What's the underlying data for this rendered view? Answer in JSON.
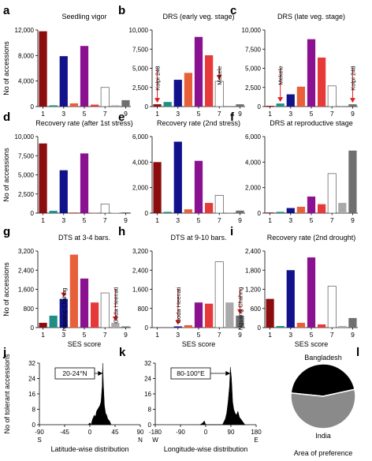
{
  "palette": {
    "1": "#8B0D0D",
    "2": "#1F8F86",
    "3": "#12128C",
    "4": "#E8603A",
    "5": "#8A1291",
    "6": "#E63A3A",
    "7": "#FFFFFF",
    "8": "#A9A9A9",
    "9": "#6F6F6F",
    "arrow": "#E02020",
    "dark": "#000000",
    "pie_grey": "#8A8A8A"
  },
  "shared": {
    "ylabel": "No of accessions",
    "xlabel": "SES score",
    "categories": [
      1,
      2,
      3,
      4,
      5,
      6,
      7,
      8,
      9
    ],
    "tick_labels": [
      "1",
      "3",
      "5",
      "7",
      "9"
    ]
  },
  "chart_data": [
    {
      "type": "bar",
      "panel_letter": "a",
      "title": "Seedling vigor",
      "ylim": [
        0,
        12000
      ],
      "yticks": [
        "0",
        "4,000",
        "8,000",
        "12,000"
      ],
      "values": [
        11800,
        200,
        7900,
        500,
        9500,
        300,
        3000,
        200,
        1000
      ],
      "annotations": []
    },
    {
      "type": "bar",
      "panel_letter": "b",
      "title": "DRS (early veg. stage)",
      "ylim": [
        0,
        10000
      ],
      "yticks": [
        "0",
        "2,500",
        "5,000",
        "7,500",
        "10,000"
      ],
      "values": [
        300,
        600,
        3500,
        4400,
        9100,
        6700,
        3300,
        100,
        300
      ],
      "annotations": [
        {
          "label": "Kolpi 248",
          "category": 1
        },
        {
          "label": "Mekele",
          "category": 7
        }
      ]
    },
    {
      "type": "bar",
      "panel_letter": "c",
      "title": "DRS (late veg. stage)",
      "ylim": [
        0,
        10000
      ],
      "yticks": [
        "0",
        "2,500",
        "5,000",
        "7,500",
        "10,000"
      ],
      "values": [
        100,
        400,
        1600,
        2600,
        8800,
        6400,
        2700,
        100,
        300
      ],
      "annotations": [
        {
          "label": "Mekele",
          "category": 2
        },
        {
          "label": "Kolpi 248",
          "category": 9
        }
      ]
    },
    {
      "type": "bar",
      "panel_letter": "d",
      "title": "Recovery rate (after 1st stress)",
      "ylim": [
        0,
        10000
      ],
      "yticks": [
        "0",
        "2,500",
        "5,000",
        "7,500",
        "10,000"
      ],
      "values": [
        9100,
        300,
        5600,
        100,
        7800,
        50,
        1200,
        50,
        100
      ],
      "annotations": []
    },
    {
      "type": "bar",
      "panel_letter": "e",
      "title": "Recovery rate (2nd stress)",
      "ylim": [
        0,
        6000
      ],
      "yticks": [
        "0",
        "2,000",
        "4,000",
        "6,000"
      ],
      "values": [
        4000,
        100,
        5600,
        300,
        4100,
        800,
        1400,
        50,
        200
      ],
      "annotations": []
    },
    {
      "type": "bar",
      "panel_letter": "f",
      "title": "DRS at reproductive stage",
      "ylim": [
        0,
        6000
      ],
      "yticks": [
        "0",
        "2,000",
        "4,000",
        "6,000"
      ],
      "values": [
        50,
        100,
        400,
        500,
        1300,
        700,
        3100,
        800,
        4900
      ],
      "annotations": []
    },
    {
      "type": "bar",
      "panel_letter": "g",
      "title": "DTS at 3-4 bars.",
      "ylim": [
        0,
        3200
      ],
      "yticks": [
        "0",
        "800",
        "1,600",
        "2,400",
        "3,200"
      ],
      "values": [
        200,
        500,
        1200,
        3050,
        2050,
        1050,
        1450,
        200,
        50
      ],
      "annotations": [
        {
          "label": "Nguang Chahng",
          "category": 3
        },
        {
          "label": "Goda Heenati",
          "category": 8
        }
      ]
    },
    {
      "type": "bar",
      "panel_letter": "h",
      "title": "DTS at 9-10 bars.",
      "ylim": [
        0,
        3200
      ],
      "yticks": [
        "0",
        "800",
        "1,600",
        "2,400",
        "3,200"
      ],
      "values": [
        0,
        0,
        50,
        100,
        1050,
        1000,
        2750,
        1050,
        500
      ],
      "annotations": [
        {
          "label": "Goda Heenati",
          "category": 3
        },
        {
          "label": "Nguang Chahng",
          "category": 9
        }
      ]
    },
    {
      "type": "bar",
      "panel_letter": "i",
      "title": "Recovery rate  (2nd drought)",
      "ylim": [
        0,
        2400
      ],
      "yticks": [
        "0",
        "600",
        "1,200",
        "1,800",
        "2,400"
      ],
      "values": [
        900,
        50,
        1800,
        150,
        2200,
        100,
        1300,
        50,
        300
      ],
      "annotations": []
    },
    {
      "type": "area",
      "panel_letter": "j",
      "xlabel": "Latitude-wise distribution",
      "xlim": [
        -90,
        90
      ],
      "xticks": [
        "-90",
        "-45",
        "0",
        "45",
        "90"
      ],
      "ylim": [
        0,
        32
      ],
      "yticks": [
        "0",
        "8",
        "16",
        "24",
        "32"
      ],
      "end_labels": [
        "S",
        "N"
      ],
      "callout": "20-24°N",
      "x": [
        -3,
        0,
        2,
        5,
        8,
        10,
        12,
        14,
        16,
        18,
        20,
        22,
        23,
        24,
        26,
        28,
        30,
        32,
        35,
        38
      ],
      "y": [
        0,
        1,
        0,
        3,
        5,
        4,
        7,
        8,
        9,
        10,
        12,
        20,
        32,
        22,
        10,
        6,
        5,
        3,
        2,
        0
      ]
    },
    {
      "type": "area",
      "panel_letter": "k",
      "xlabel": "Longitude-wise distribution",
      "xlim": [
        -180,
        180
      ],
      "xticks": [
        "-180",
        "-90",
        "0",
        "90",
        "180"
      ],
      "ylim": [
        0,
        32
      ],
      "yticks": [
        "0",
        "8",
        "16",
        "24",
        "32"
      ],
      "end_labels": [
        "W",
        "E"
      ],
      "callout": "80-100°E",
      "x": [
        -20,
        -10,
        -5,
        0,
        60,
        70,
        75,
        80,
        85,
        88,
        92,
        96,
        100,
        105,
        110,
        115,
        120,
        125,
        130,
        140
      ],
      "y": [
        0,
        1,
        2,
        0,
        0,
        3,
        6,
        12,
        20,
        30,
        24,
        12,
        8,
        6,
        5,
        7,
        4,
        3,
        2,
        0
      ]
    },
    {
      "type": "pie",
      "panel_letter": "l",
      "xlabel": "Area of preference",
      "slices": [
        {
          "name": "Bangladesh",
          "value": 45
        },
        {
          "name": "India",
          "value": 55
        }
      ]
    }
  ],
  "shared_ylabel_lower": "No of tolerant accessions"
}
